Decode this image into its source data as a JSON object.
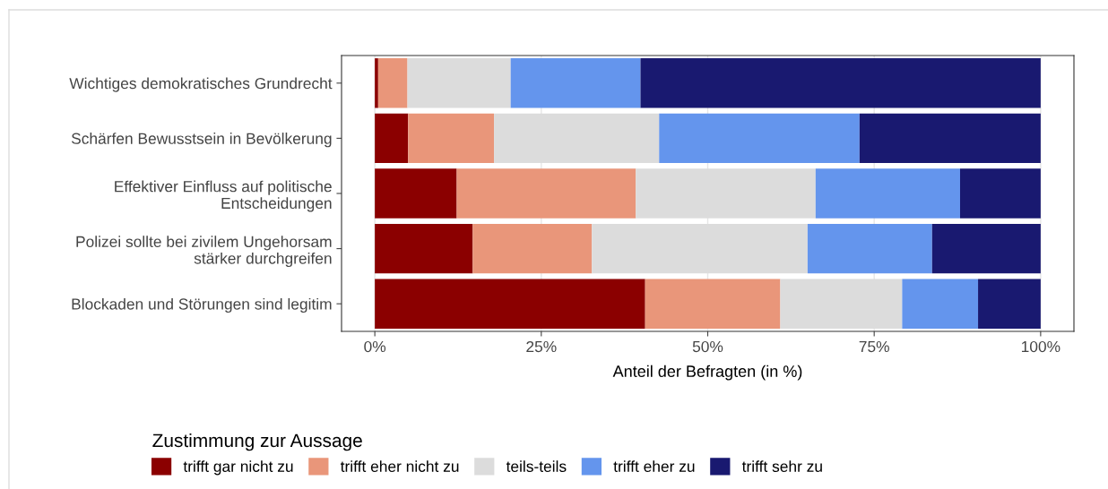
{
  "chart_data": {
    "type": "bar",
    "orientation": "horizontal",
    "stacked": true,
    "xlabel": "Anteil der Befragten (in %)",
    "legend_title": "Zustimmung zur Aussage",
    "legend": "bottom",
    "grid": "x",
    "categories": [
      "Wichtiges demokratisches Grundrecht",
      "Schärfen Bewusstsein in Bevölkerung",
      "Effektiver Einfluss auf politische\nEntscheidungen",
      "Polizei sollte bei zivilem Ungehorsam\nstärker durchgreifen",
      "Blockaden und Störungen sind legitim"
    ],
    "xlim": [
      -5,
      105
    ],
    "xticks": [
      {
        "value": 0,
        "label": "0%"
      },
      {
        "value": 25,
        "label": "25%"
      },
      {
        "value": 50,
        "label": "50%"
      },
      {
        "value": 75,
        "label": "75%"
      },
      {
        "value": 100,
        "label": "100%"
      }
    ],
    "series": [
      {
        "name": "trifft gar nicht zu",
        "color": "#8b0000",
        "values": [
          0.5,
          5.0,
          12.3,
          14.7,
          40.6
        ]
      },
      {
        "name": "trifft eher nicht zu",
        "color": "#e9967a",
        "values": [
          4.4,
          12.9,
          26.9,
          17.9,
          20.3
        ]
      },
      {
        "name": "teils-teils",
        "color": "#dcdcdc",
        "values": [
          15.5,
          24.8,
          27.0,
          32.4,
          18.3
        ]
      },
      {
        "name": "trifft eher zu",
        "color": "#6495ed",
        "values": [
          19.5,
          30.1,
          21.7,
          18.7,
          11.4
        ]
      },
      {
        "name": "trifft sehr zu",
        "color": "#191970",
        "values": [
          60.1,
          27.2,
          12.1,
          16.3,
          9.4
        ]
      }
    ]
  }
}
